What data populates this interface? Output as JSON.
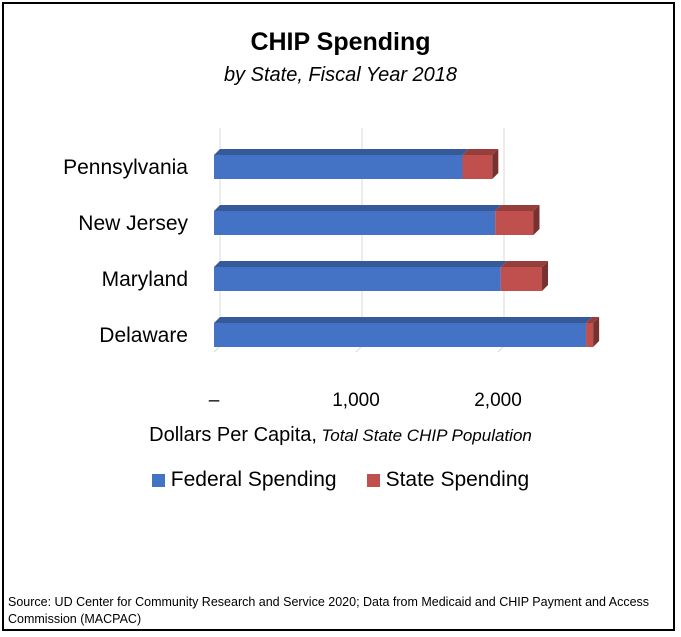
{
  "title": "CHIP Spending",
  "subtitle": "by State, Fiscal Year 2018",
  "x_axis_label": "Dollars Per Capita,",
  "x_axis_unit": "Total State CHIP Population",
  "source": "Source: UD Center for Community Research and Service 2020; Data from Medicaid and CHIP Payment and Access Commission (MACPAC)",
  "legend": [
    {
      "label": "Federal Spending",
      "color": "#4472c4"
    },
    {
      "label": "State Spending",
      "color": "#c0504d"
    }
  ],
  "chart_data": {
    "type": "bar",
    "orientation": "horizontal",
    "stacked": true,
    "categories": [
      "Pennsylvania",
      "New Jersey",
      "Maryland",
      "Delaware"
    ],
    "series": [
      {
        "name": "Federal Spending",
        "values": [
          1750,
          1980,
          2020,
          2620
        ],
        "color": "#4472c4"
      },
      {
        "name": "State Spending",
        "values": [
          210,
          270,
          290,
          50
        ],
        "color": "#c0504d"
      }
    ],
    "xlim": [
      0,
      3000
    ],
    "xticks": [
      "–",
      "1,000",
      "2,000"
    ],
    "grid": true,
    "legend_position": "bottom"
  }
}
